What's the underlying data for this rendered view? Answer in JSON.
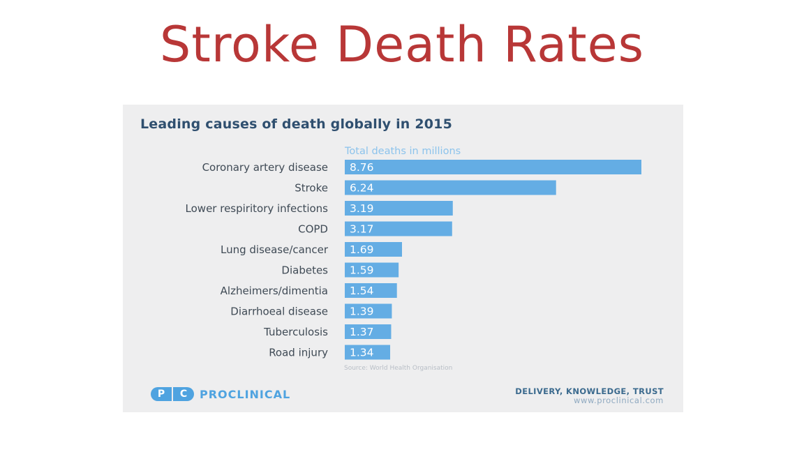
{
  "slide": {
    "title": "Stroke Death Rates"
  },
  "chart_data": {
    "type": "bar",
    "orientation": "horizontal",
    "title": "Leading causes of death globally in 2015",
    "xlabel": "Total deaths in millions",
    "categories": [
      "Coronary artery disease",
      "Stroke",
      "Lower respiritory infections",
      "COPD",
      "Lung disease/cancer",
      "Diabetes",
      "Alzheimers/dimentia",
      "Diarrhoeal disease",
      "Tuberculosis",
      "Road injury"
    ],
    "values": [
      8.76,
      6.24,
      3.19,
      3.17,
      1.69,
      1.59,
      1.54,
      1.39,
      1.37,
      1.34
    ],
    "value_labels": [
      "8.76",
      "6.24",
      "3.19",
      "3.17",
      "1.69",
      "1.59",
      "1.54",
      "1.39",
      "1.37",
      "1.34"
    ],
    "xlim": [
      0,
      8.76
    ],
    "bar_color": "#64ade4",
    "source": "Source: World Health Organisation"
  },
  "branding": {
    "logo_mark": [
      "P",
      "C"
    ],
    "logo_text": "PROCLINICAL",
    "tagline": "DELIVERY, KNOWLEDGE, TRUST",
    "url": "www.proclinical.com",
    "brand_color": "#4fa3e0"
  }
}
